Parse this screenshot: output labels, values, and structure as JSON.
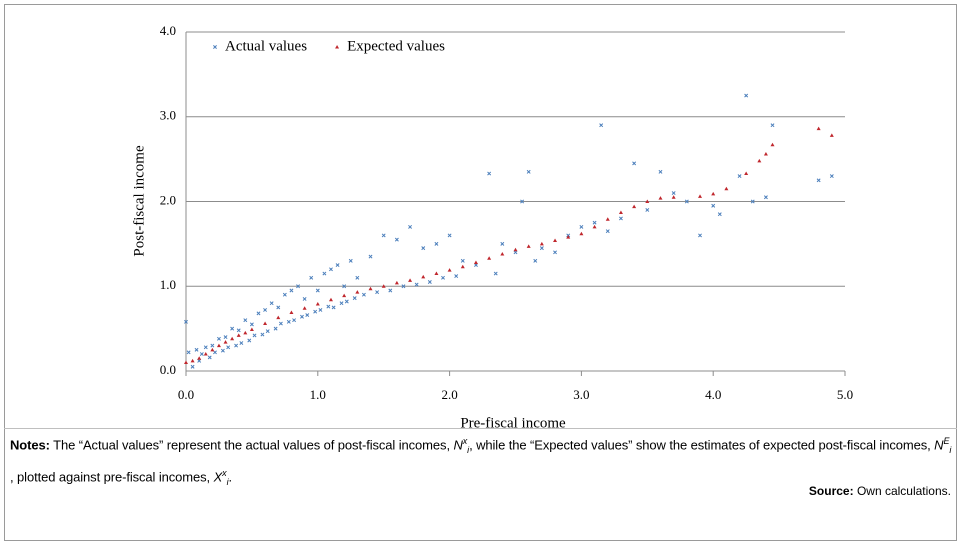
{
  "chart_data": {
    "type": "scatter",
    "xlabel": "Pre-fiscal income",
    "ylabel": "Post-fiscal income",
    "xlim": [
      0,
      5
    ],
    "ylim": [
      0,
      4
    ],
    "xticks": [
      {
        "value": 0,
        "label": "0.0"
      },
      {
        "value": 1,
        "label": "1.0"
      },
      {
        "value": 2,
        "label": "2.0"
      },
      {
        "value": 3,
        "label": "3.0"
      },
      {
        "value": 4,
        "label": "4.0"
      },
      {
        "value": 5,
        "label": "5.0"
      }
    ],
    "yticks": [
      {
        "value": 0,
        "label": "0.0"
      },
      {
        "value": 1,
        "label": "1.0"
      },
      {
        "value": 2,
        "label": "2.0"
      },
      {
        "value": 3,
        "label": "3.0"
      },
      {
        "value": 4,
        "label": "4.0"
      }
    ],
    "grid": true,
    "legend": "top",
    "series": [
      {
        "name": "Actual values",
        "color": "#4a7ebb",
        "marker": "x",
        "x": [
          0,
          0.02,
          0.05,
          0.08,
          0.1,
          0.12,
          0.15,
          0.18,
          0.2,
          0.22,
          0.25,
          0.28,
          0.3,
          0.32,
          0.35,
          0.38,
          0.4,
          0.42,
          0.45,
          0.48,
          0.5,
          0.52,
          0.55,
          0.58,
          0.6,
          0.62,
          0.65,
          0.68,
          0.7,
          0.72,
          0.75,
          0.78,
          0.8,
          0.82,
          0.85,
          0.88,
          0.9,
          0.92,
          0.95,
          0.98,
          1.0,
          1.02,
          1.05,
          1.08,
          1.1,
          1.12,
          1.15,
          1.18,
          1.2,
          1.22,
          1.25,
          1.28,
          1.3,
          1.35,
          1.4,
          1.45,
          1.5,
          1.55,
          1.6,
          1.65,
          1.7,
          1.75,
          1.8,
          1.85,
          1.9,
          1.95,
          2.0,
          2.05,
          2.1,
          2.2,
          2.3,
          2.35,
          2.4,
          2.5,
          2.55,
          2.6,
          2.65,
          2.7,
          2.8,
          2.9,
          3.0,
          3.1,
          3.15,
          3.2,
          3.3,
          3.4,
          3.5,
          3.6,
          3.7,
          3.8,
          3.9,
          4.0,
          4.05,
          4.2,
          4.25,
          4.3,
          4.4,
          4.45,
          4.8,
          4.9
        ],
        "values": [
          0.58,
          0.22,
          0.05,
          0.25,
          0.12,
          0.2,
          0.28,
          0.16,
          0.3,
          0.22,
          0.38,
          0.24,
          0.4,
          0.28,
          0.5,
          0.3,
          0.48,
          0.33,
          0.6,
          0.36,
          0.55,
          0.42,
          0.68,
          0.43,
          0.72,
          0.47,
          0.8,
          0.5,
          0.75,
          0.56,
          0.9,
          0.58,
          0.95,
          0.6,
          1.0,
          0.64,
          0.85,
          0.66,
          1.1,
          0.7,
          0.95,
          0.72,
          1.15,
          0.76,
          1.2,
          0.75,
          1.25,
          0.8,
          1.0,
          0.82,
          1.3,
          0.86,
          1.1,
          0.9,
          1.35,
          0.93,
          1.6,
          0.95,
          1.55,
          1.0,
          1.7,
          1.02,
          1.45,
          1.05,
          1.5,
          1.1,
          1.6,
          1.12,
          1.3,
          1.25,
          2.33,
          1.15,
          1.5,
          1.4,
          2.0,
          2.35,
          1.3,
          1.45,
          1.4,
          1.6,
          1.7,
          1.75,
          2.9,
          1.65,
          1.8,
          2.45,
          1.9,
          2.35,
          2.1,
          2.0,
          1.6,
          1.95,
          1.85,
          2.3,
          3.25,
          2.0,
          2.05,
          2.9,
          2.25,
          2.3
        ]
      },
      {
        "name": "Expected values",
        "color": "#c0272d",
        "marker": "triangle",
        "x": [
          0,
          0.05,
          0.1,
          0.15,
          0.2,
          0.25,
          0.3,
          0.35,
          0.4,
          0.45,
          0.5,
          0.6,
          0.7,
          0.8,
          0.9,
          1.0,
          1.1,
          1.2,
          1.3,
          1.4,
          1.5,
          1.6,
          1.7,
          1.8,
          1.9,
          2.0,
          2.1,
          2.2,
          2.3,
          2.4,
          2.5,
          2.6,
          2.7,
          2.8,
          2.9,
          3.0,
          3.1,
          3.2,
          3.3,
          3.4,
          3.5,
          3.6,
          3.7,
          3.9,
          4.0,
          4.1,
          4.25,
          4.35,
          4.4,
          4.45,
          4.8,
          4.9
        ],
        "values": [
          0.1,
          0.12,
          0.15,
          0.2,
          0.25,
          0.3,
          0.34,
          0.38,
          0.42,
          0.45,
          0.49,
          0.56,
          0.63,
          0.69,
          0.74,
          0.79,
          0.84,
          0.89,
          0.93,
          0.97,
          1.0,
          1.04,
          1.07,
          1.11,
          1.15,
          1.19,
          1.23,
          1.28,
          1.33,
          1.38,
          1.43,
          1.47,
          1.5,
          1.54,
          1.58,
          1.62,
          1.7,
          1.79,
          1.87,
          1.94,
          2.0,
          2.04,
          2.05,
          2.06,
          2.09,
          2.15,
          2.33,
          2.48,
          2.56,
          2.67,
          2.86,
          2.78
        ]
      }
    ]
  },
  "notes": {
    "label": "Notes:",
    "parts": [
      {
        "text": " The “Actual values” represent the actual values of post-fiscal incomes, "
      },
      {
        "base": "N",
        "sup": "x",
        "sub": "i"
      },
      {
        "text": ", while the “Expected values” show the estimates of expected post-fiscal incomes, "
      },
      {
        "base": "N",
        "sup": "E",
        "sub": "i"
      },
      {
        "text": ", plotted against pre-fiscal incomes, "
      },
      {
        "base": "X",
        "sup": "x",
        "sub": "i"
      },
      {
        "text": "."
      }
    ]
  },
  "source": {
    "label": "Source:",
    "text": " Own calculations."
  }
}
